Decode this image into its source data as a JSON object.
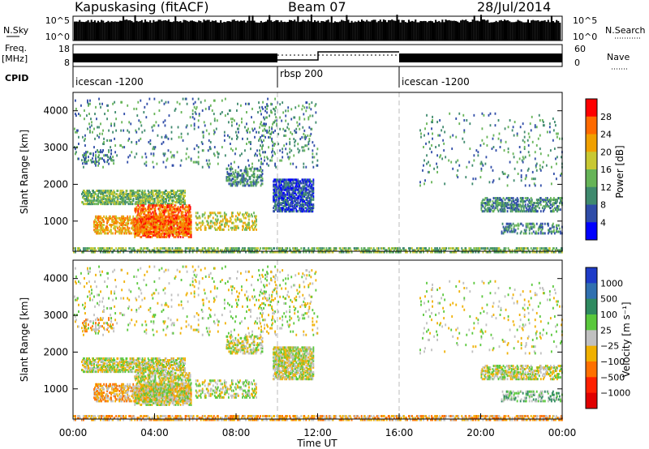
{
  "header": {
    "station": "Kapuskasing (fitACF)",
    "beam": "Beam 07",
    "date": "28/Jul/2014"
  },
  "sky_panel": {
    "left_label": "N.Sky",
    "right_label": "N.Search",
    "left_ticks": [
      "10^5",
      "10^0"
    ],
    "right_ticks": [
      "10^5",
      "10^0"
    ]
  },
  "freq_panel": {
    "left_label_1": "Freq.",
    "left_label_2": "[MHz]",
    "left_ticks": [
      "18",
      "8"
    ],
    "right_label": "Nave",
    "right_ticks": [
      "60",
      "0"
    ]
  },
  "cpid": {
    "label": "CPID",
    "segments": [
      {
        "name": "icescan -1200",
        "start_hour": 0
      },
      {
        "name": "rbsp 200",
        "start_hour": 10
      },
      {
        "name": "icescan -1200",
        "start_hour": 16
      }
    ]
  },
  "chart_data": [
    {
      "type": "heatmap",
      "title": "",
      "ylabel": "Slant Range [km]",
      "xlabel": "",
      "xlim": [
        0,
        24
      ],
      "ylim": [
        180,
        4500
      ],
      "yticks": [
        1000,
        2000,
        3000,
        4000
      ],
      "colorbar": {
        "label": "Power [dB]",
        "ticks": [
          "4",
          "8",
          "12",
          "16",
          "20",
          "24",
          "28"
        ],
        "colors": [
          "#0000ff",
          "#2f4ca8",
          "#3f8a6e",
          "#66b457",
          "#c8c832",
          "#f0a000",
          "#ff6a00",
          "#ff0000"
        ]
      }
    },
    {
      "type": "heatmap",
      "title": "",
      "ylabel": "Slant Range [km]",
      "xlabel": "Time UT",
      "xlim": [
        0,
        24
      ],
      "ylim": [
        180,
        4500
      ],
      "yticks": [
        1000,
        2000,
        3000,
        4000
      ],
      "xticks": [
        "00:00",
        "04:00",
        "08:00",
        "12:00",
        "16:00",
        "20:00",
        "00:00"
      ],
      "colorbar": {
        "label": "Velocity [m s⁻¹]",
        "ticks": [
          "1000",
          "500",
          "100",
          "25",
          "−25",
          "−100",
          "−500",
          "−1000"
        ],
        "colors": [
          "#1e3cc8",
          "#3070b0",
          "#2f8a60",
          "#5ac83c",
          "#c0c0c0",
          "#f0b000",
          "#ff7000",
          "#ff2000",
          "#e00000"
        ]
      }
    }
  ]
}
